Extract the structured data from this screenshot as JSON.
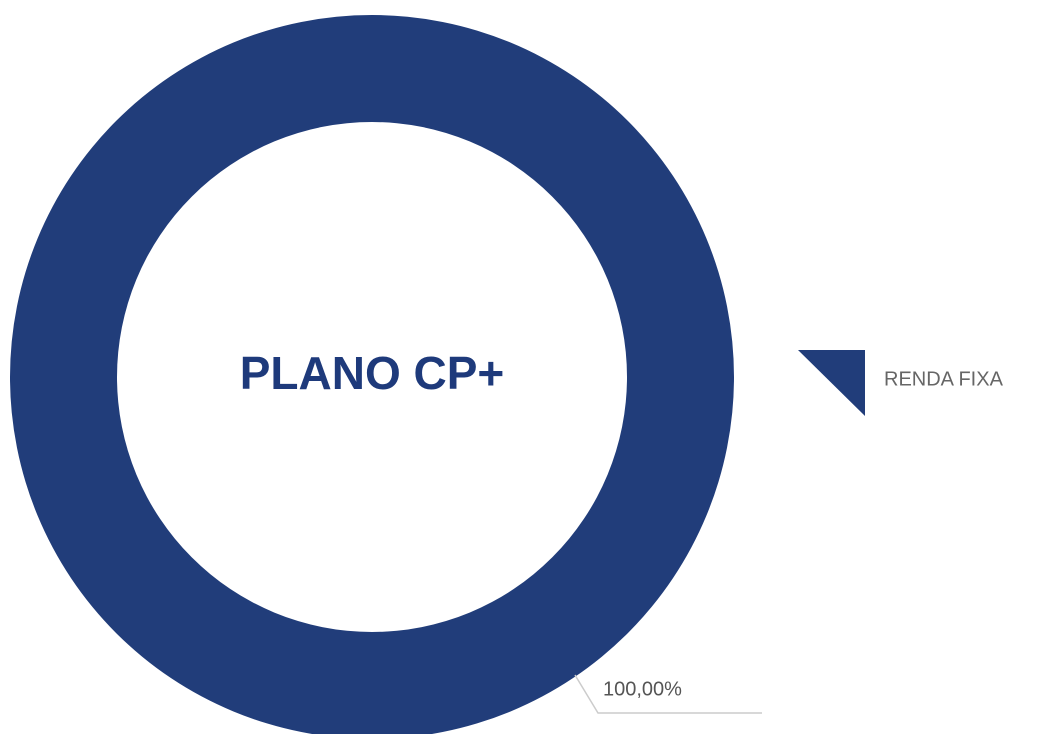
{
  "chart_data": {
    "type": "pie",
    "donut": true,
    "center_text": "PLANO CP+",
    "categories": [
      "RENDA FIXA"
    ],
    "values": [
      100
    ],
    "value_labels": [
      "100,00%"
    ],
    "colors": [
      "#213d7a"
    ],
    "legend": "right"
  }
}
